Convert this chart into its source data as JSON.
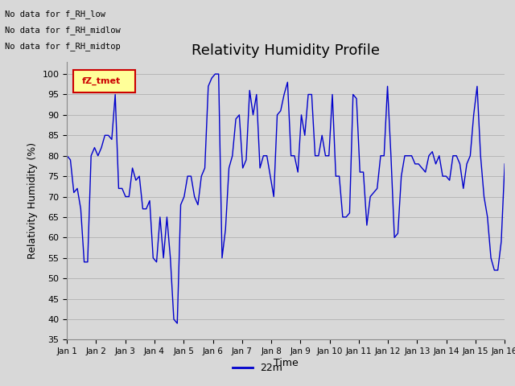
{
  "title": "Relativity Humidity Profile",
  "ylabel": "Relativity Humidity (%)",
  "xlabel": "Time",
  "legend_label": "22m",
  "line_color": "#0000CC",
  "bg_color": "#D8D8D8",
  "ylim": [
    35,
    103
  ],
  "yticks": [
    35,
    40,
    45,
    50,
    55,
    60,
    65,
    70,
    75,
    80,
    85,
    90,
    95,
    100
  ],
  "xtick_labels": [
    "Jan 1",
    "Jan 2",
    "Jan 3",
    "Jan 4",
    "Jan 5",
    "Jan 6",
    "Jan 7",
    "Jan 8",
    "Jan 9",
    "Jan 10",
    "Jan 11",
    "Jan 12",
    "Jan 13",
    "Jan 14",
    "Jan 15",
    "Jan 16"
  ],
  "no_data_texts": [
    "No data for f_RH_low",
    "No data for f_RH_midlow",
    "No data for f_RH_midtop"
  ],
  "legend_box_color": "#FFFF99",
  "legend_box_border": "#CC0000",
  "legend_text_color": "#CC0000",
  "legend_label_tz": "fZ_tmet",
  "humidity_values": [
    80,
    79,
    71,
    72,
    67,
    54,
    54,
    80,
    82,
    80,
    82,
    85,
    85,
    84,
    95,
    72,
    72,
    70,
    70,
    77,
    74,
    75,
    67,
    67,
    69,
    55,
    54,
    65,
    55,
    65,
    55,
    40,
    39,
    68,
    70,
    75,
    75,
    70,
    68,
    75,
    77,
    97,
    99,
    100,
    100,
    55,
    62,
    77,
    80,
    89,
    90,
    77,
    79,
    96,
    90,
    95,
    77,
    80,
    80,
    75,
    70,
    90,
    91,
    95,
    98,
    80,
    80,
    76,
    90,
    85,
    95,
    95,
    80,
    80,
    85,
    80,
    80,
    95,
    75,
    75,
    65,
    65,
    66,
    95,
    94,
    76,
    76,
    63,
    70,
    71,
    72,
    80,
    80,
    97,
    80,
    60,
    61,
    75,
    80,
    80,
    80,
    78,
    78,
    77,
    76,
    80,
    81,
    78,
    80,
    75,
    75,
    74,
    80,
    80,
    78,
    72,
    78,
    80,
    90,
    97,
    80,
    70,
    65,
    55,
    52,
    52,
    59,
    78
  ]
}
